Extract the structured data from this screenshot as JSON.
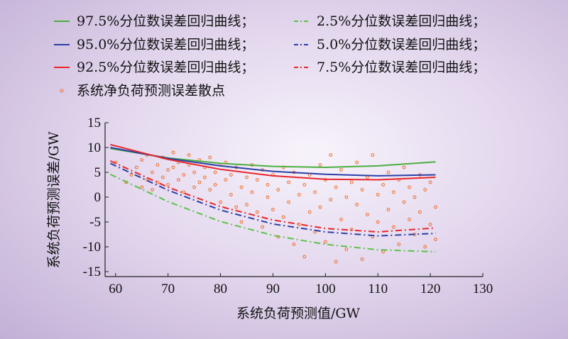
{
  "chart_data": {
    "type": "scatter",
    "xlabel": "系统负荷预测值/GW",
    "ylabel": "系统负荷预测误差/GW",
    "xlim": [
      58,
      130
    ],
    "ylim": [
      -16,
      15
    ],
    "xticks": [
      60,
      70,
      80,
      90,
      100,
      110,
      120,
      130
    ],
    "yticks": [
      -15,
      -10,
      -5,
      0,
      5,
      10,
      15
    ],
    "grid": false,
    "legend_position": "top",
    "series": [
      {
        "name": "97.5%分位数误差回归曲线",
        "style": "solid",
        "color": "#4caf3f",
        "x": [
          59,
          70,
          80,
          90,
          100,
          110,
          121
        ],
        "y": [
          9.8,
          7.9,
          6.8,
          6.2,
          6.0,
          6.3,
          7.1
        ]
      },
      {
        "name": "95.0%分位数误差回归曲线",
        "style": "solid",
        "color": "#2b3fa6",
        "x": [
          59,
          70,
          80,
          90,
          100,
          110,
          121
        ],
        "y": [
          10.0,
          7.8,
          6.3,
          5.2,
          4.6,
          4.3,
          4.5
        ]
      },
      {
        "name": "92.5%分位数误差回归曲线",
        "style": "solid",
        "color": "#e8262a",
        "x": [
          59,
          70,
          80,
          90,
          100,
          110,
          121
        ],
        "y": [
          10.6,
          7.6,
          5.6,
          4.3,
          3.6,
          3.5,
          4.0
        ]
      },
      {
        "name": "2.5%分位数误差回归曲线",
        "style": "dashdot",
        "color": "#5cc24a",
        "x": [
          59,
          70,
          80,
          90,
          100,
          110,
          121
        ],
        "y": [
          4.6,
          -0.9,
          -4.9,
          -7.7,
          -9.5,
          -10.6,
          -11.0
        ]
      },
      {
        "name": "5.0%分位数误差回归曲线",
        "style": "dashdot",
        "color": "#2b3fa6",
        "x": [
          59,
          70,
          80,
          90,
          100,
          110,
          121
        ],
        "y": [
          6.8,
          1.4,
          -2.6,
          -5.4,
          -7.0,
          -7.8,
          -7.3
        ]
      },
      {
        "name": "7.5%分位数误差回归曲线",
        "style": "dashdot",
        "color": "#e8262a",
        "x": [
          59,
          70,
          80,
          90,
          100,
          110,
          121
        ],
        "y": [
          7.3,
          2.0,
          -1.9,
          -4.6,
          -6.3,
          -7.0,
          -6.2
        ]
      }
    ],
    "scatter": {
      "name": "系统净负荷预测误差散点",
      "color": "#ef6c27",
      "points": [
        [
          60,
          7.0
        ],
        [
          62,
          3.0
        ],
        [
          63,
          4.5
        ],
        [
          64,
          6.0
        ],
        [
          65,
          2.0
        ],
        [
          65,
          7.5
        ],
        [
          66,
          3.5
        ],
        [
          66,
          8.5
        ],
        [
          67,
          5.0
        ],
        [
          67,
          1.5
        ],
        [
          68,
          6.5
        ],
        [
          68,
          3.0
        ],
        [
          69,
          4.0
        ],
        [
          69,
          8.0
        ],
        [
          70,
          5.5
        ],
        [
          70,
          2.5
        ],
        [
          71,
          6.0
        ],
        [
          71,
          9.0
        ],
        [
          72,
          3.5
        ],
        [
          72,
          7.0
        ],
        [
          73,
          4.5
        ],
        [
          73,
          1.0
        ],
        [
          74,
          6.5
        ],
        [
          74,
          8.5
        ],
        [
          75,
          2.0
        ],
        [
          75,
          5.0
        ],
        [
          76,
          7.5
        ],
        [
          76,
          3.0
        ],
        [
          77,
          4.0
        ],
        [
          77,
          6.0
        ],
        [
          78,
          1.5
        ],
        [
          78,
          8.0
        ],
        [
          79,
          5.0
        ],
        [
          79,
          2.5
        ],
        [
          80,
          6.5
        ],
        [
          80,
          -1.0
        ],
        [
          81,
          3.5
        ],
        [
          81,
          7.0
        ],
        [
          82,
          0.5
        ],
        [
          82,
          4.5
        ],
        [
          83,
          -2.0
        ],
        [
          83,
          6.0
        ],
        [
          84,
          2.0
        ],
        [
          84,
          -5.0
        ],
        [
          85,
          4.0
        ],
        [
          85,
          -1.5
        ],
        [
          86,
          6.5
        ],
        [
          86,
          1.0
        ],
        [
          87,
          -3.0
        ],
        [
          87,
          3.5
        ],
        [
          88,
          5.5
        ],
        [
          88,
          -6.0
        ],
        [
          89,
          0.0
        ],
        [
          89,
          2.5
        ],
        [
          90,
          -2.5
        ],
        [
          90,
          4.5
        ],
        [
          91,
          -8.0
        ],
        [
          91,
          1.5
        ],
        [
          92,
          6.0
        ],
        [
          92,
          -4.0
        ],
        [
          93,
          3.0
        ],
        [
          93,
          -1.0
        ],
        [
          94,
          -9.5
        ],
        [
          94,
          5.0
        ],
        [
          95,
          0.5
        ],
        [
          95,
          -5.5
        ],
        [
          96,
          2.5
        ],
        [
          96,
          -12.0
        ],
        [
          97,
          4.5
        ],
        [
          97,
          -3.0
        ],
        [
          98,
          -7.0
        ],
        [
          98,
          1.0
        ],
        [
          99,
          6.5
        ],
        [
          99,
          -2.0
        ],
        [
          100,
          3.5
        ],
        [
          100,
          -9.0
        ],
        [
          101,
          8.5
        ],
        [
          101,
          -0.5
        ],
        [
          102,
          -13.0
        ],
        [
          102,
          2.0
        ],
        [
          103,
          5.5
        ],
        [
          103,
          -4.5
        ],
        [
          104,
          0.0
        ],
        [
          104,
          -10.5
        ],
        [
          105,
          3.0
        ],
        [
          105,
          -6.5
        ],
        [
          106,
          7.0
        ],
        [
          106,
          -1.5
        ],
        [
          107,
          -12.5
        ],
        [
          107,
          1.5
        ],
        [
          108,
          4.0
        ],
        [
          108,
          -3.5
        ],
        [
          109,
          8.5
        ],
        [
          109,
          -8.0
        ],
        [
          110,
          0.5
        ],
        [
          110,
          -5.0
        ],
        [
          111,
          2.5
        ],
        [
          111,
          -11.0
        ],
        [
          112,
          5.0
        ],
        [
          112,
          -2.5
        ],
        [
          113,
          -6.0
        ],
        [
          113,
          1.0
        ],
        [
          114,
          3.5
        ],
        [
          114,
          -9.5
        ],
        [
          115,
          -1.0
        ],
        [
          115,
          6.0
        ],
        [
          116,
          -4.5
        ],
        [
          116,
          2.0
        ],
        [
          117,
          -7.5
        ],
        [
          117,
          0.0
        ],
        [
          118,
          4.5
        ],
        [
          118,
          -3.0
        ],
        [
          119,
          -10.0
        ],
        [
          119,
          1.5
        ],
        [
          120,
          -5.5
        ],
        [
          120,
          3.0
        ],
        [
          121,
          -2.0
        ],
        [
          121,
          -8.5
        ]
      ]
    }
  }
}
